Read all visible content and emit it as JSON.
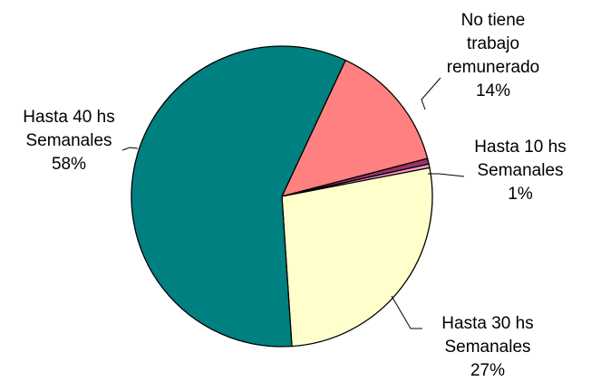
{
  "chart_data": {
    "type": "pie",
    "title": "",
    "slices": [
      {
        "lines": [
          "No tiene",
          "trabajo",
          "remunerado"
        ],
        "percent_label": "14%",
        "value": 14.0,
        "color": "#FF8080"
      },
      {
        "lines": [
          "Hasta 10 hs",
          "Semanales"
        ],
        "percent_label": "1%",
        "value": 0.6,
        "color": "#993366"
      },
      {
        "lines": [],
        "percent_label": "",
        "value": 0.4,
        "color": "#FF99CC"
      },
      {
        "lines": [
          "Hasta 30 hs",
          "Semanales"
        ],
        "percent_label": "27%",
        "value": 27.0,
        "color": "#FFFFCC"
      },
      {
        "lines": [
          "Hasta 40 hs",
          "Semanales"
        ],
        "percent_label": "58%",
        "value": 58.0,
        "color": "#008080"
      }
    ],
    "start_angle_deg": 25
  }
}
